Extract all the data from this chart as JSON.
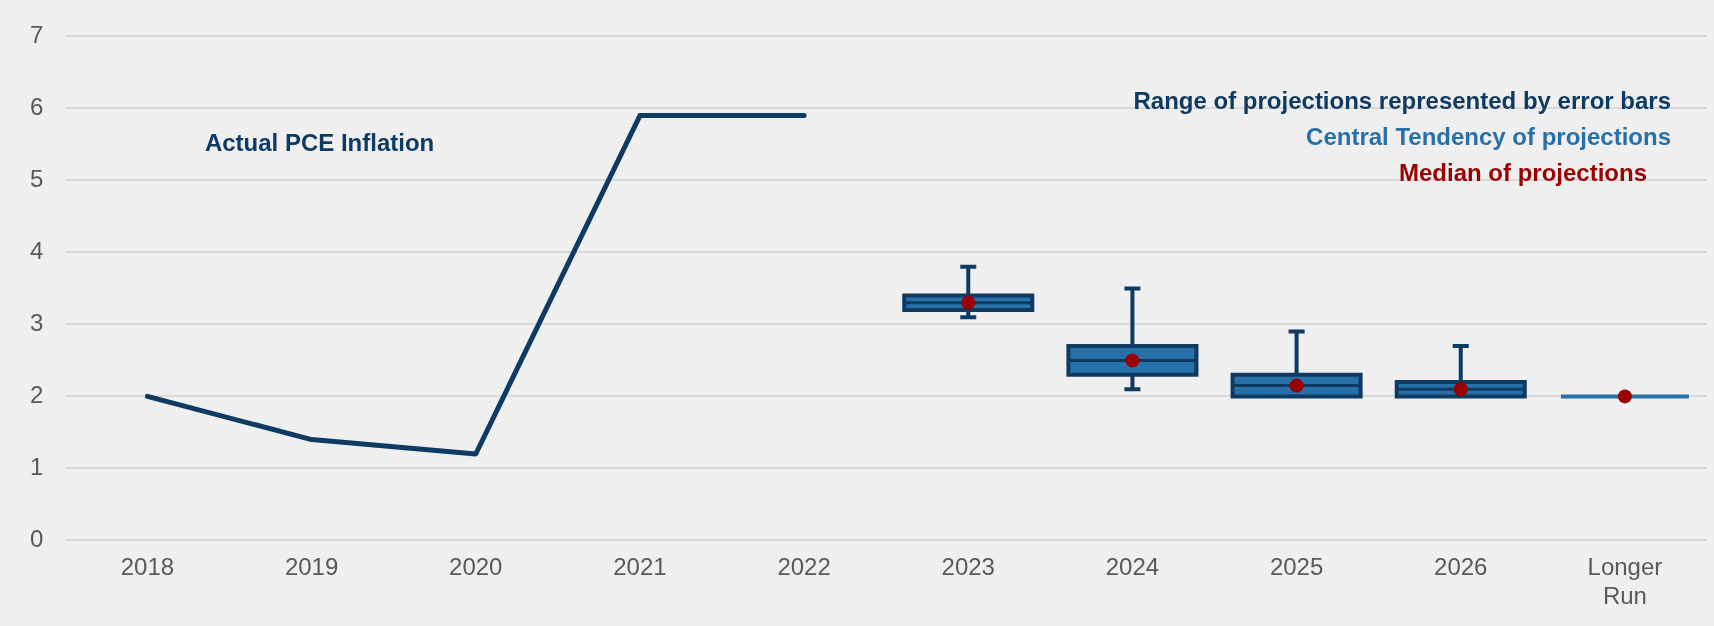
{
  "chart_data": {
    "type": "line",
    "categories": [
      "2018",
      "2019",
      "2020",
      "2021",
      "2022",
      "2023",
      "2024",
      "2025",
      "2026",
      "Longer Run"
    ],
    "series": [
      {
        "name": "Actual PCE Inflation",
        "color": "#0f3a62",
        "values": [
          2.0,
          1.4,
          1.2,
          5.9,
          5.9,
          null,
          null,
          null,
          null,
          null
        ]
      },
      {
        "type": "box",
        "name": "Central Tendency of projections",
        "color": "#2870a8",
        "boxes": [
          null,
          null,
          null,
          null,
          null,
          {
            "low": 3.1,
            "q1": 3.2,
            "median": 3.3,
            "q3": 3.4,
            "high": 3.8
          },
          {
            "low": 2.1,
            "q1": 2.3,
            "median": 2.5,
            "q3": 2.7,
            "high": 3.5
          },
          {
            "low": 2.0,
            "q1": 2.0,
            "median": 2.15,
            "q3": 2.3,
            "high": 2.9
          },
          {
            "low": 2.0,
            "q1": 2.0,
            "median": 2.1,
            "q3": 2.2,
            "high": 2.7
          },
          {
            "low": 2.0,
            "q1": 2.0,
            "median": 2.0,
            "q3": 2.0,
            "high": 2.0
          }
        ]
      },
      {
        "type": "scatter",
        "name": "Median of projections",
        "color": "#990000",
        "marker": "circle",
        "values": [
          null,
          null,
          null,
          null,
          null,
          3.3,
          2.5,
          2.15,
          2.1,
          2.0
        ]
      }
    ],
    "annotations": [
      "Range of projections represented by error bars"
    ],
    "ylim": [
      0,
      7
    ],
    "yticks": [
      0,
      1,
      2,
      3,
      4,
      5,
      6,
      7
    ],
    "grid": "y",
    "legend": "top right"
  }
}
